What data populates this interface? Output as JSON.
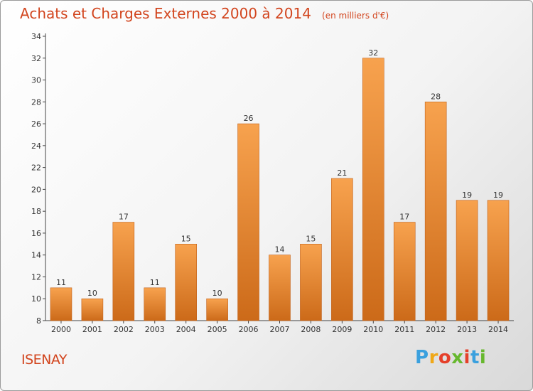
{
  "header": {
    "title": "Achats et Charges Externes 2000 à 2014",
    "unit": "(en milliers d'€)"
  },
  "footer": {
    "commune": "ISENAY",
    "logo": {
      "text": "Proxiti",
      "letters": [
        "P",
        "r",
        "o",
        "x",
        "i",
        "t",
        "i"
      ],
      "colors": [
        "#3aa0de",
        "#f0a818",
        "#e5402a",
        "#67b82e",
        "#e5402a",
        "#3aa0de",
        "#67b82e"
      ]
    }
  },
  "colors": {
    "bar_top": "#f7a24e",
    "bar_bottom": "#cc6a19",
    "bar_edge": "#c2611a"
  },
  "chart_data": {
    "type": "bar",
    "title": "Achats et Charges Externes 2000 à 2014",
    "subtitle": "(en milliers d'€)",
    "categories": [
      "2000",
      "2001",
      "2002",
      "2003",
      "2004",
      "2005",
      "2006",
      "2007",
      "2008",
      "2009",
      "2010",
      "2011",
      "2012",
      "2013",
      "2014"
    ],
    "values": [
      11,
      10,
      17,
      11,
      15,
      10,
      26,
      14,
      15,
      21,
      32,
      17,
      28,
      19,
      19
    ],
    "ylim": [
      8,
      34
    ],
    "yticks": [
      8,
      10,
      12,
      14,
      16,
      18,
      20,
      22,
      24,
      26,
      28,
      30,
      32,
      34
    ],
    "grid": false,
    "data_labels": true
  }
}
